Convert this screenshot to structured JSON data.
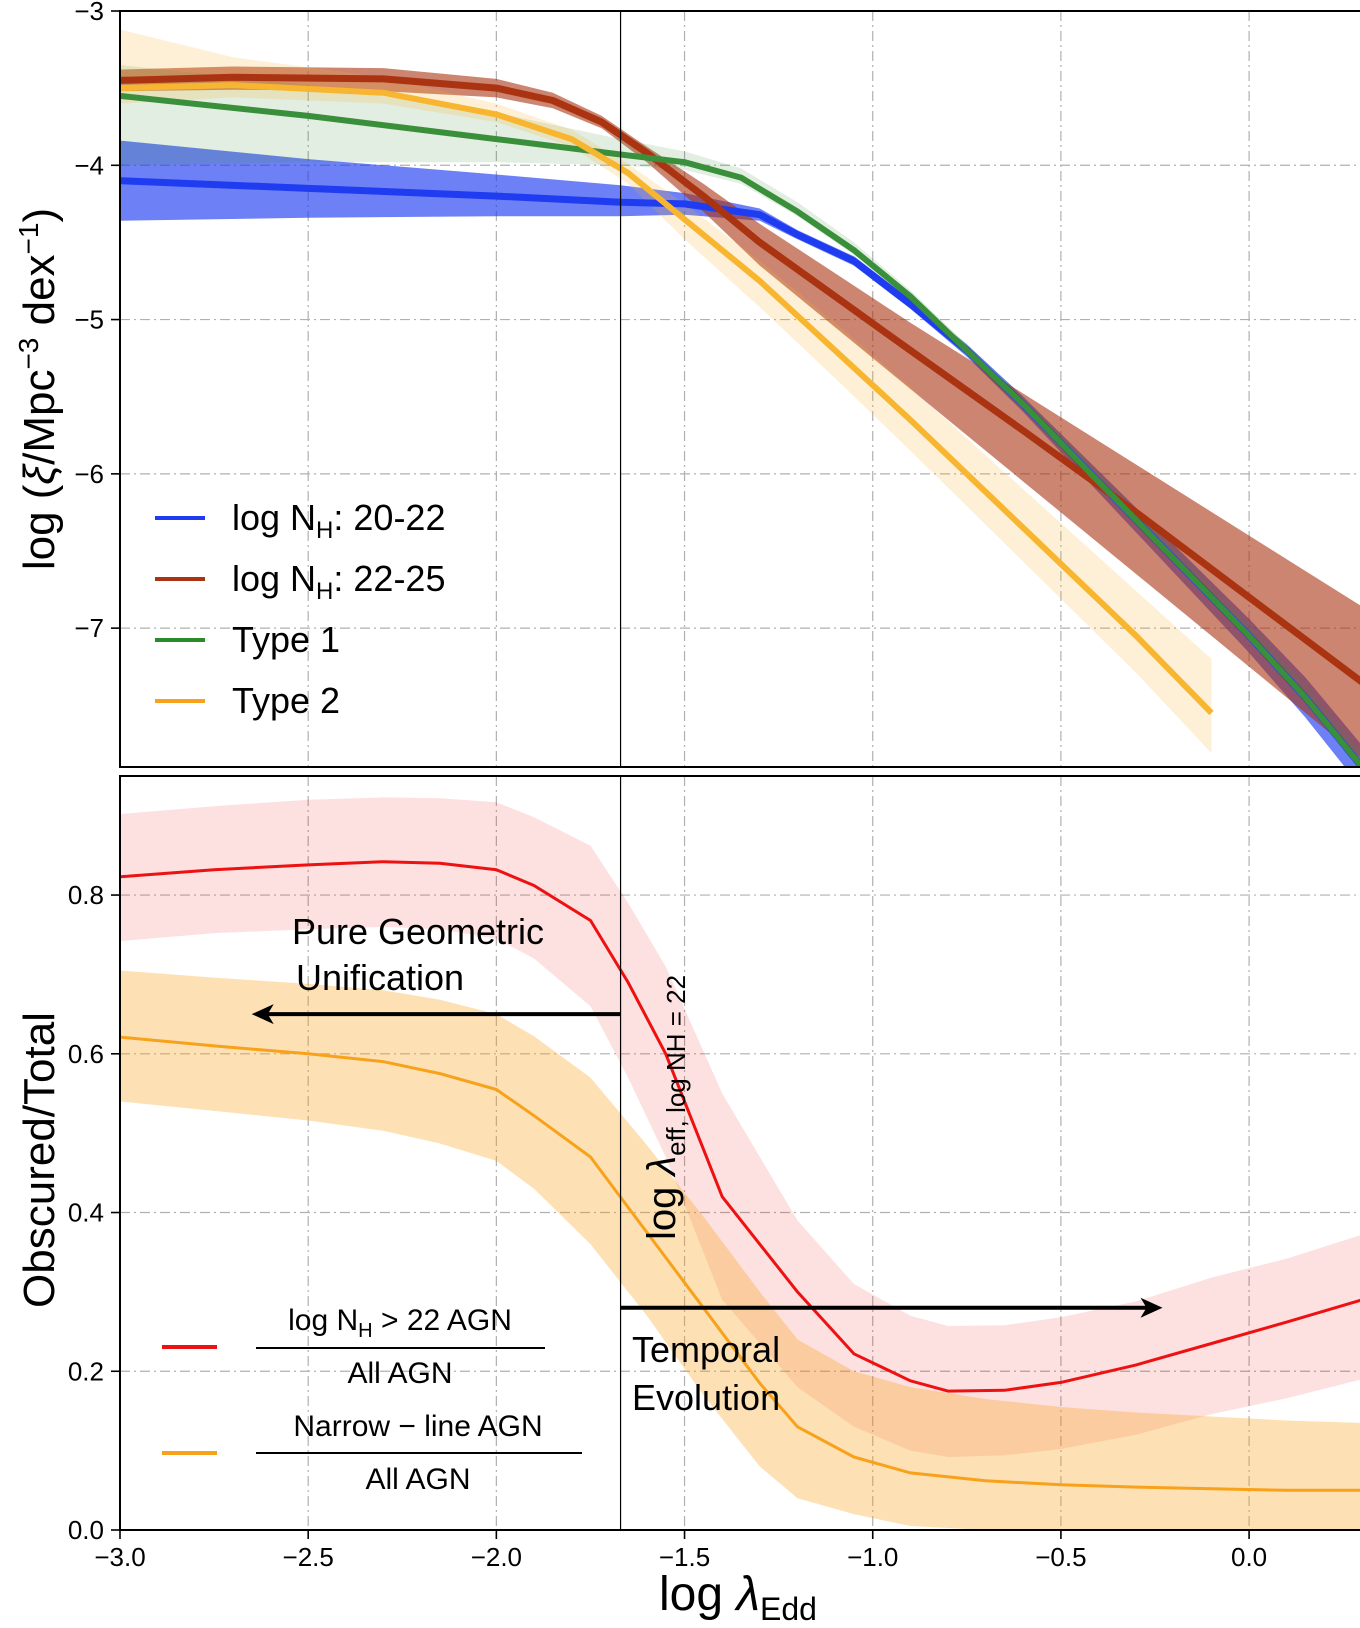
{
  "chart_data": [
    {
      "type": "line",
      "panel": "top",
      "title": "",
      "xlabel": "",
      "ylabel": {
        "main": "log (",
        "xi": "ξ",
        "unit": "/Mpc",
        "sup1": "−3",
        "mid": " dex",
        "sup2": "−1",
        "end": ")"
      },
      "xlim": [
        -3.0,
        0.3
      ],
      "ylim": [
        -7.9,
        -3.0
      ],
      "yticks": [
        -7,
        -6,
        -5,
        -4,
        -3
      ],
      "ytick_labels": [
        "−7",
        "−6",
        "−5",
        "−4",
        "−3"
      ],
      "grid": true,
      "vline_x": -1.67,
      "legend_position": "lower-left",
      "series": [
        {
          "name": "log N_H: 20-22",
          "label": {
            "pre": "log N",
            "sub": "H",
            "post": ": 20-22"
          },
          "color": "#1f3cf0",
          "band_opacity": 0.65,
          "line_width": 7,
          "x": [
            -3.0,
            -2.5,
            -2.0,
            -1.67,
            -1.5,
            -1.3,
            -1.2,
            -1.05,
            -0.9,
            -0.75,
            -0.6,
            -0.4,
            -0.2,
            0.0,
            0.15,
            0.3
          ],
          "y": [
            -4.1,
            -4.15,
            -4.2,
            -4.24,
            -4.25,
            -4.32,
            -4.45,
            -4.62,
            -4.9,
            -5.2,
            -5.55,
            -6.05,
            -6.55,
            -7.05,
            -7.45,
            -7.9
          ],
          "lower": [
            -4.36,
            -4.34,
            -4.33,
            -4.33,
            -4.32,
            -4.36,
            -4.48,
            -4.65,
            -4.93,
            -5.24,
            -5.6,
            -6.12,
            -6.64,
            -7.16,
            -7.58,
            -8.04
          ],
          "upper": [
            -3.84,
            -3.96,
            -4.06,
            -4.13,
            -4.18,
            -4.28,
            -4.42,
            -4.59,
            -4.87,
            -5.16,
            -5.5,
            -5.98,
            -6.46,
            -6.94,
            -7.32,
            -7.76
          ]
        },
        {
          "name": "log N_H: 22-25",
          "label": {
            "pre": "log N",
            "sub": "H",
            "post": ": 22-25"
          },
          "color": "#aa3311",
          "band_opacity": 0.6,
          "line_width": 7,
          "x": [
            -3.0,
            -2.7,
            -2.3,
            -2.0,
            -1.85,
            -1.72,
            -1.6,
            -1.45,
            -1.3,
            -1.1,
            -0.9,
            -0.6,
            -0.3,
            0.0,
            0.3
          ],
          "y": [
            -3.45,
            -3.43,
            -3.44,
            -3.5,
            -3.58,
            -3.72,
            -3.92,
            -4.2,
            -4.5,
            -4.85,
            -5.2,
            -5.72,
            -6.25,
            -6.8,
            -7.35
          ],
          "lower": [
            -3.52,
            -3.51,
            -3.52,
            -3.56,
            -3.63,
            -3.76,
            -3.98,
            -4.3,
            -4.65,
            -5.05,
            -5.45,
            -6.05,
            -6.65,
            -7.25,
            -7.85
          ],
          "upper": [
            -3.38,
            -3.36,
            -3.37,
            -3.44,
            -3.53,
            -3.68,
            -3.88,
            -4.12,
            -4.38,
            -4.7,
            -5.02,
            -5.48,
            -5.94,
            -6.4,
            -6.86
          ]
        },
        {
          "name": "Type 1",
          "label": {
            "pre": "Type 1",
            "sub": "",
            "post": ""
          },
          "color": "#3a8f3a",
          "band_opacity": 0.15,
          "line_width": 6,
          "x": [
            -3.0,
            -2.5,
            -2.0,
            -1.67,
            -1.5,
            -1.35,
            -1.2,
            -1.05,
            -0.9,
            -0.75,
            -0.6,
            -0.4,
            -0.2,
            0.0,
            0.15,
            0.3
          ],
          "y": [
            -3.55,
            -3.68,
            -3.83,
            -3.93,
            -3.98,
            -4.08,
            -4.3,
            -4.55,
            -4.85,
            -5.2,
            -5.55,
            -6.05,
            -6.55,
            -7.05,
            -7.45,
            -7.9
          ],
          "lower": [
            -4.0,
            -3.98,
            -3.98,
            -4.0,
            -4.03,
            -4.12,
            -4.33,
            -4.58,
            -4.88,
            -5.23,
            -5.58,
            -6.08,
            -6.58,
            -7.08,
            -7.48,
            -7.93
          ],
          "upper": [
            -3.35,
            -3.48,
            -3.66,
            -3.83,
            -3.91,
            -4.02,
            -4.24,
            -4.5,
            -4.81,
            -5.16,
            -5.5,
            -5.99,
            -6.48,
            -6.97,
            -7.36,
            -7.8
          ]
        },
        {
          "name": "Type 2",
          "label": {
            "pre": "Type 2",
            "sub": "",
            "post": ""
          },
          "color": "#f8b530",
          "band_opacity": 0.2,
          "line_width": 6,
          "x": [
            -3.0,
            -2.7,
            -2.3,
            -2.0,
            -1.8,
            -1.65,
            -1.5,
            -1.3,
            -1.1,
            -0.9,
            -0.6,
            -0.3,
            -0.1
          ],
          "y": [
            -3.5,
            -3.48,
            -3.53,
            -3.67,
            -3.83,
            -4.05,
            -4.35,
            -4.75,
            -5.2,
            -5.65,
            -6.35,
            -7.05,
            -7.55
          ],
          "lower": [
            -3.6,
            -3.56,
            -3.6,
            -3.72,
            -3.88,
            -4.12,
            -4.48,
            -4.92,
            -5.38,
            -5.85,
            -6.57,
            -7.29,
            -7.81
          ],
          "upper": [
            -3.12,
            -3.3,
            -3.43,
            -3.6,
            -3.77,
            -3.99,
            -4.25,
            -4.62,
            -5.02,
            -5.44,
            -6.1,
            -6.76,
            -7.2
          ]
        }
      ]
    },
    {
      "type": "line",
      "panel": "bottom",
      "title": "",
      "xlabel": {
        "main": "log ",
        "lambda": "λ",
        "sub": "Edd"
      },
      "ylabel": "Obscured/Total",
      "xlim": [
        -3.0,
        0.3
      ],
      "ylim": [
        0.0,
        0.95
      ],
      "xticks": [
        -3.0,
        -2.5,
        -2.0,
        -1.5,
        -1.0,
        -0.5,
        0.0
      ],
      "xtick_labels": [
        "−3.0",
        "−2.5",
        "−2.0",
        "−1.5",
        "−1.0",
        "−0.5",
        "0.0"
      ],
      "yticks": [
        0.0,
        0.2,
        0.4,
        0.6,
        0.8
      ],
      "ytick_labels": [
        "0.0",
        "0.2",
        "0.4",
        "0.6",
        "0.8"
      ],
      "grid": true,
      "vline_x": -1.67,
      "legend_position": "lower-left",
      "series": [
        {
          "name": "log N_H > 22 AGN / All AGN",
          "label": {
            "num_pre": "log N",
            "num_sub": "H",
            "num_post": " > 22 AGN",
            "den": "All AGN"
          },
          "color": "#ee1111",
          "band_opacity": 0.13,
          "line_width": 3,
          "x": [
            -3.0,
            -2.75,
            -2.5,
            -2.3,
            -2.15,
            -2.0,
            -1.9,
            -1.75,
            -1.65,
            -1.55,
            -1.4,
            -1.2,
            -1.05,
            -0.9,
            -0.8,
            -0.65,
            -0.5,
            -0.3,
            -0.1,
            0.1,
            0.3
          ],
          "y": [
            0.823,
            0.832,
            0.838,
            0.842,
            0.84,
            0.832,
            0.812,
            0.768,
            0.69,
            0.6,
            0.42,
            0.3,
            0.222,
            0.188,
            0.175,
            0.176,
            0.186,
            0.208,
            0.235,
            0.262,
            0.29
          ],
          "lower": [
            0.742,
            0.752,
            0.757,
            0.76,
            0.757,
            0.745,
            0.72,
            0.66,
            0.57,
            0.47,
            0.29,
            0.18,
            0.13,
            0.1,
            0.092,
            0.094,
            0.102,
            0.12,
            0.146,
            0.166,
            0.19
          ],
          "upper": [
            0.902,
            0.912,
            0.92,
            0.923,
            0.922,
            0.917,
            0.898,
            0.862,
            0.79,
            0.71,
            0.55,
            0.39,
            0.31,
            0.27,
            0.257,
            0.258,
            0.268,
            0.288,
            0.318,
            0.342,
            0.372
          ]
        },
        {
          "name": "Narrow-line AGN / All AGN",
          "label": {
            "num_pre": "Narrow − line AGN",
            "num_sub": "",
            "num_post": "",
            "den": "All AGN"
          },
          "color": "#f8a11a",
          "band_opacity": 0.32,
          "line_width": 3,
          "x": [
            -3.0,
            -2.75,
            -2.5,
            -2.3,
            -2.15,
            -2.0,
            -1.9,
            -1.75,
            -1.6,
            -1.45,
            -1.3,
            -1.2,
            -1.05,
            -0.9,
            -0.7,
            -0.5,
            -0.3,
            -0.1,
            0.1,
            0.3
          ],
          "y": [
            0.621,
            0.61,
            0.6,
            0.59,
            0.575,
            0.555,
            0.522,
            0.47,
            0.375,
            0.28,
            0.185,
            0.13,
            0.092,
            0.072,
            0.062,
            0.057,
            0.054,
            0.052,
            0.05,
            0.05
          ],
          "lower": [
            0.54,
            0.528,
            0.516,
            0.503,
            0.487,
            0.465,
            0.43,
            0.36,
            0.27,
            0.17,
            0.08,
            0.04,
            0.02,
            0.005,
            0.0,
            0.0,
            0.0,
            0.0,
            0.0,
            0.0
          ],
          "upper": [
            0.705,
            0.696,
            0.688,
            0.68,
            0.668,
            0.65,
            0.622,
            0.57,
            0.485,
            0.395,
            0.3,
            0.24,
            0.2,
            0.18,
            0.165,
            0.155,
            0.148,
            0.143,
            0.138,
            0.135
          ]
        }
      ],
      "annotations": {
        "geometric_line1": "Pure Geometric",
        "geometric_line2": "Unification",
        "geometric_arrow": {
          "x_from": -1.67,
          "x_to": -2.65,
          "y": 0.65
        },
        "temporal_line1": "Temporal",
        "temporal_line2": "Evolution",
        "temporal_arrow": {
          "x_from": -1.67,
          "x_to": -0.23,
          "y": 0.28
        },
        "vline_label": {
          "main": "log ",
          "lambda": "λ",
          "sub": "eff, log NH = 22"
        }
      }
    }
  ]
}
